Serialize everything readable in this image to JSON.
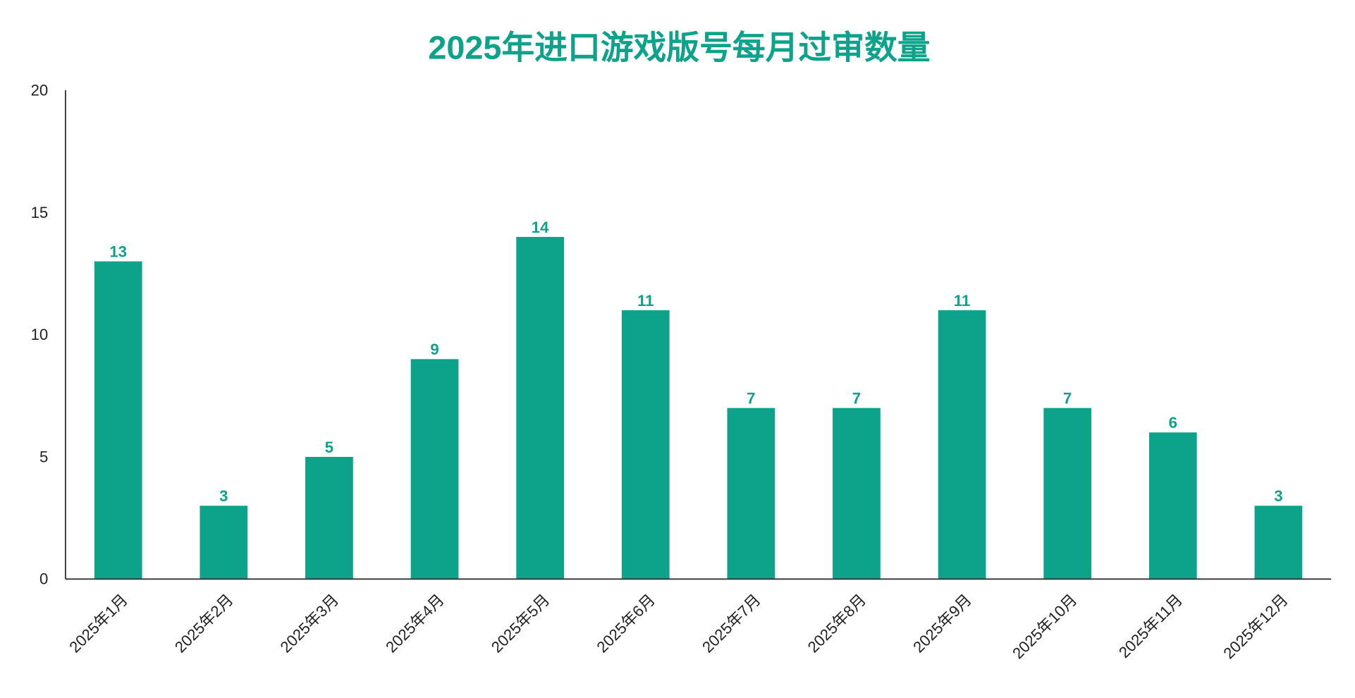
{
  "chart_data": {
    "type": "bar",
    "title": "2025年进口游戏版号每月过审数量",
    "xlabel": "",
    "ylabel": "",
    "categories": [
      "2025年1月",
      "2025年2月",
      "2025年3月",
      "2025年4月",
      "2025年5月",
      "2025年6月",
      "2025年7月",
      "2025年8月",
      "2025年9月",
      "2025年10月",
      "2025年11月",
      "2025年12月"
    ],
    "values": [
      13,
      3,
      5,
      9,
      14,
      11,
      7,
      7,
      11,
      7,
      6,
      3
    ],
    "ylim": [
      0,
      20
    ],
    "yticks": [
      "0",
      "5",
      "10",
      "15",
      "20"
    ],
    "grid": false,
    "legend": "none",
    "colors": {
      "bar": "#0DA28A",
      "title": "#0DA28A",
      "axis": "#333333"
    }
  }
}
